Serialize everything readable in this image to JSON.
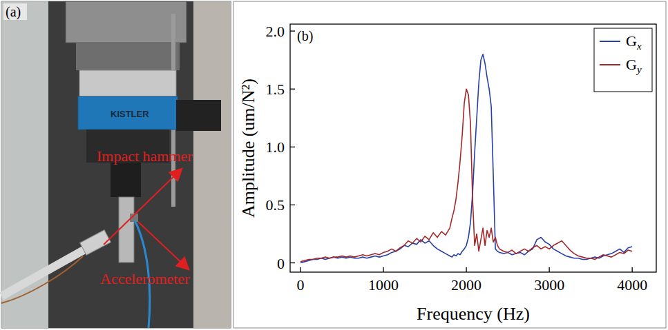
{
  "photo": {
    "panel_label": "(a)",
    "brand": "KISTLER",
    "annotations": [
      "Impact hammer",
      "Accelerometer"
    ]
  },
  "chart_data": {
    "type": "line",
    "panel_label": "(b)",
    "x_label": "Frequency (Hz)",
    "y_label": "Amplitude (um/N²)",
    "x": [
      0,
      50,
      100,
      150,
      200,
      250,
      300,
      350,
      400,
      450,
      500,
      550,
      600,
      650,
      700,
      750,
      800,
      850,
      900,
      950,
      1000,
      1050,
      1100,
      1150,
      1200,
      1250,
      1300,
      1350,
      1400,
      1450,
      1500,
      1550,
      1600,
      1650,
      1700,
      1750,
      1800,
      1825,
      1850,
      1875,
      1900,
      1925,
      1950,
      1975,
      2000,
      2025,
      2050,
      2075,
      2100,
      2125,
      2150,
      2175,
      2200,
      2225,
      2250,
      2275,
      2300,
      2325,
      2350,
      2375,
      2400,
      2450,
      2500,
      2550,
      2600,
      2650,
      2700,
      2750,
      2800,
      2850,
      2900,
      2950,
      3000,
      3050,
      3100,
      3150,
      3200,
      3250,
      3300,
      3350,
      3400,
      3450,
      3500,
      3550,
      3600,
      3650,
      3700,
      3750,
      3800,
      3850,
      3900,
      3950,
      4000
    ],
    "series": [
      {
        "name": "Gx",
        "color": "#2640a8",
        "values": [
          0.0,
          0.01,
          0.02,
          0.03,
          0.03,
          0.04,
          0.03,
          0.04,
          0.05,
          0.04,
          0.05,
          0.04,
          0.05,
          0.04,
          0.04,
          0.05,
          0.04,
          0.05,
          0.06,
          0.05,
          0.06,
          0.07,
          0.09,
          0.1,
          0.12,
          0.15,
          0.14,
          0.17,
          0.16,
          0.2,
          0.17,
          0.19,
          0.15,
          0.12,
          0.1,
          0.08,
          0.06,
          0.05,
          0.07,
          0.06,
          0.08,
          0.07,
          0.1,
          0.12,
          0.15,
          0.22,
          0.35,
          0.6,
          0.95,
          1.25,
          1.55,
          1.75,
          1.8,
          1.72,
          1.6,
          1.5,
          1.35,
          0.75,
          0.12,
          0.1,
          0.09,
          0.08,
          0.09,
          0.07,
          0.08,
          0.09,
          0.07,
          0.1,
          0.12,
          0.2,
          0.22,
          0.18,
          0.16,
          0.12,
          0.1,
          0.08,
          0.06,
          0.05,
          0.04,
          0.04,
          0.03,
          0.03,
          0.04,
          0.05,
          0.04,
          0.06,
          0.07,
          0.08,
          0.1,
          0.12,
          0.09,
          0.13,
          0.14
        ]
      },
      {
        "name": "Gy",
        "color": "#a3282a",
        "values": [
          0.01,
          0.02,
          0.03,
          0.03,
          0.04,
          0.04,
          0.05,
          0.04,
          0.05,
          0.05,
          0.06,
          0.05,
          0.06,
          0.05,
          0.06,
          0.07,
          0.06,
          0.07,
          0.08,
          0.07,
          0.09,
          0.1,
          0.12,
          0.1,
          0.13,
          0.15,
          0.19,
          0.17,
          0.21,
          0.18,
          0.23,
          0.2,
          0.26,
          0.22,
          0.27,
          0.24,
          0.3,
          0.38,
          0.45,
          0.55,
          0.7,
          0.88,
          1.1,
          1.38,
          1.5,
          1.45,
          1.2,
          0.55,
          0.15,
          0.25,
          0.1,
          0.2,
          0.3,
          0.15,
          0.28,
          0.22,
          0.3,
          0.18,
          0.22,
          0.15,
          0.12,
          0.1,
          0.09,
          0.11,
          0.08,
          0.1,
          0.12,
          0.1,
          0.13,
          0.15,
          0.12,
          0.14,
          0.12,
          0.15,
          0.17,
          0.19,
          0.15,
          0.11,
          0.08,
          0.06,
          0.05,
          0.04,
          0.04,
          0.03,
          0.05,
          0.07,
          0.06,
          0.05,
          0.07,
          0.09,
          0.08,
          0.11,
          0.1
        ]
      }
    ],
    "xlim": [
      -125,
      4290
    ],
    "ylim": [
      -0.08,
      2.06
    ],
    "xticks": [
      0,
      1000,
      2000,
      3000,
      4000
    ],
    "yticks": [
      0,
      0.5,
      {
        "value": 1,
        "label": "1.0"
      },
      1.5,
      {
        "value": 2,
        "label": "2.0"
      }
    ],
    "legend": "upper right",
    "grid": false
  }
}
